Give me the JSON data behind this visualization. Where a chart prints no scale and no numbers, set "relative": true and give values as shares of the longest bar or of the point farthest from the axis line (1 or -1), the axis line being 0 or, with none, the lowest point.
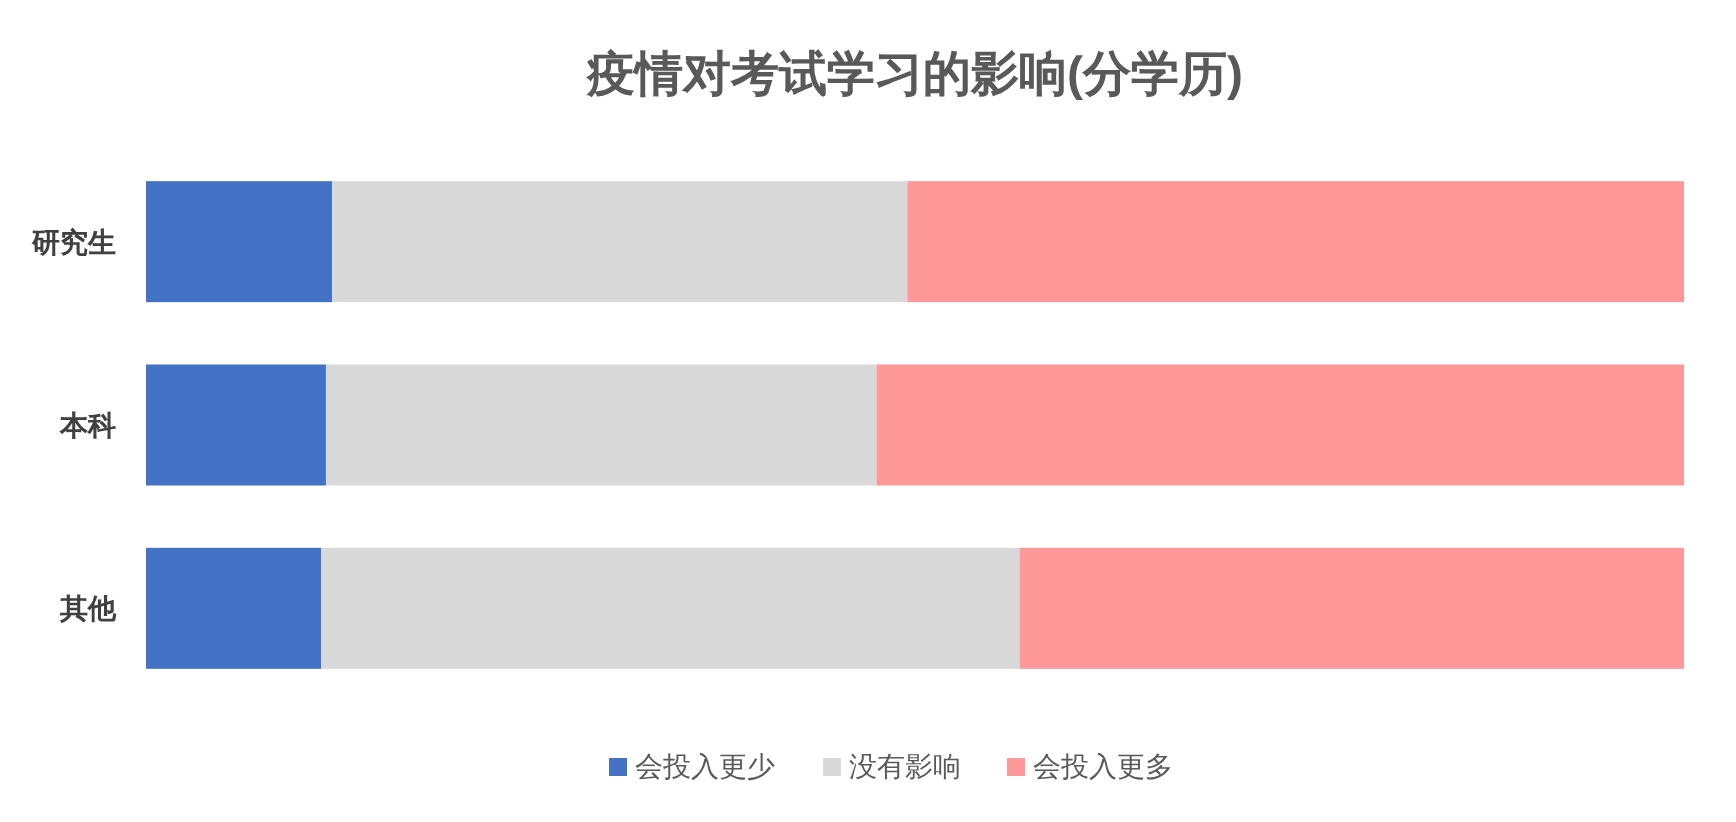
{
  "chart_data": {
    "type": "bar",
    "title": "疫情对考试学习的影响(分学历)",
    "orientation": "horizontal",
    "stacked": true,
    "relative": true,
    "legend": "bottom",
    "categories": [
      "研究生",
      "本科",
      "其他"
    ],
    "series": [
      {
        "name": "会投入更少",
        "color": "#4472c4",
        "values": [
          0.121,
          0.117,
          0.114
        ]
      },
      {
        "name": "没有影响",
        "color": "#d9d9d9",
        "values": [
          0.374,
          0.358,
          0.454
        ]
      },
      {
        "name": "会投入更多",
        "color": "#ff9999",
        "values": [
          0.505,
          0.525,
          0.432
        ]
      }
    ]
  }
}
